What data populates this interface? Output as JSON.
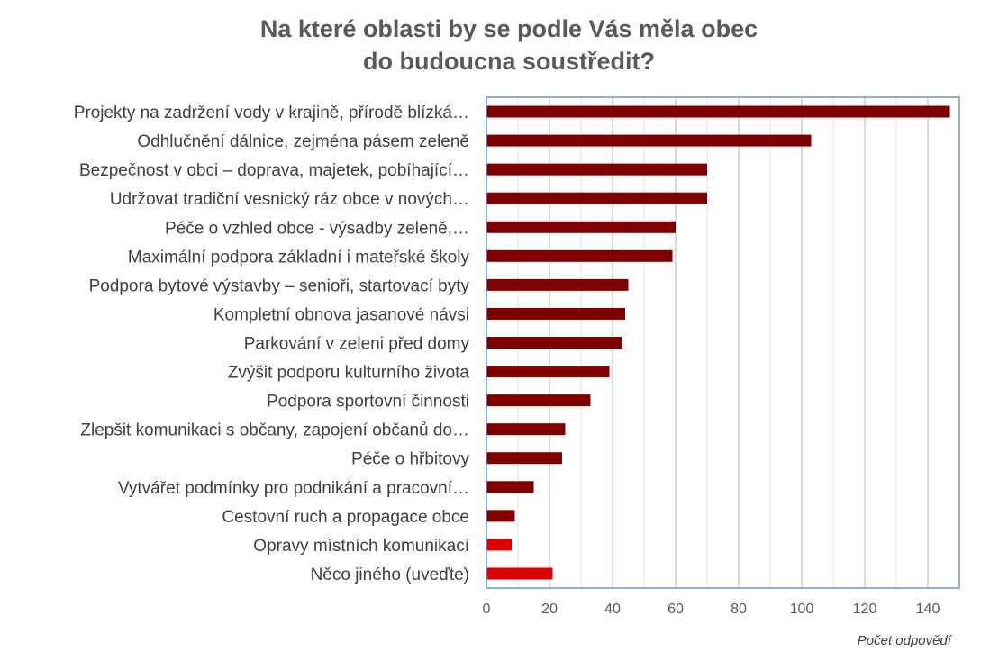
{
  "chart_data": {
    "type": "bar",
    "orientation": "horizontal",
    "title": [
      "Na které oblasti by se podle Vás měla obec",
      "do budoucna soustředit?"
    ],
    "categories": [
      "Projekty na zadržení vody v krajině, přírodě blízká…",
      "Odhlučnění dálnice, zejména pásem zeleně",
      "Bezpečnost v obci – doprava, majetek, pobíhající…",
      "Udržovat tradiční vesnický ráz obce v nových…",
      "Péče o vzhled obce - výsadby zeleně,…",
      "Maximální podpora základní i mateřské školy",
      "Podpora bytové výstavby – senioři, startovací byty",
      "Kompletní obnova jasanové návsi",
      "Parkování v zeleni před domy",
      "Zvýšit podporu kulturního života",
      "Podpora sportovní činnosti",
      "Zlepšit komunikaci s občany, zapojení občanů do…",
      "Péče o hřbitovy",
      "Vytvářet podmínky pro podnikání a pracovní…",
      "Cestovní ruch a propagace obce",
      "Opravy místních komunikací",
      "Něco jiného (uveďte)"
    ],
    "values": [
      147,
      103,
      70,
      70,
      60,
      59,
      45,
      44,
      43,
      39,
      33,
      25,
      24,
      15,
      9,
      8,
      21
    ],
    "bar_colors": [
      "#800000",
      "#800000",
      "#800000",
      "#800000",
      "#800000",
      "#800000",
      "#800000",
      "#800000",
      "#800000",
      "#800000",
      "#800000",
      "#800000",
      "#800000",
      "#800000",
      "#800000",
      "#e00000",
      "#e00000"
    ],
    "xlabel": "Počet odpovědí",
    "ylabel": "",
    "xlim": [
      0,
      150
    ],
    "xticks": [
      0,
      20,
      40,
      60,
      80,
      100,
      120,
      140
    ],
    "grid": true,
    "legend": "none",
    "frame_color": "#5b9bd5",
    "grid_color": "#d9d9d9"
  }
}
